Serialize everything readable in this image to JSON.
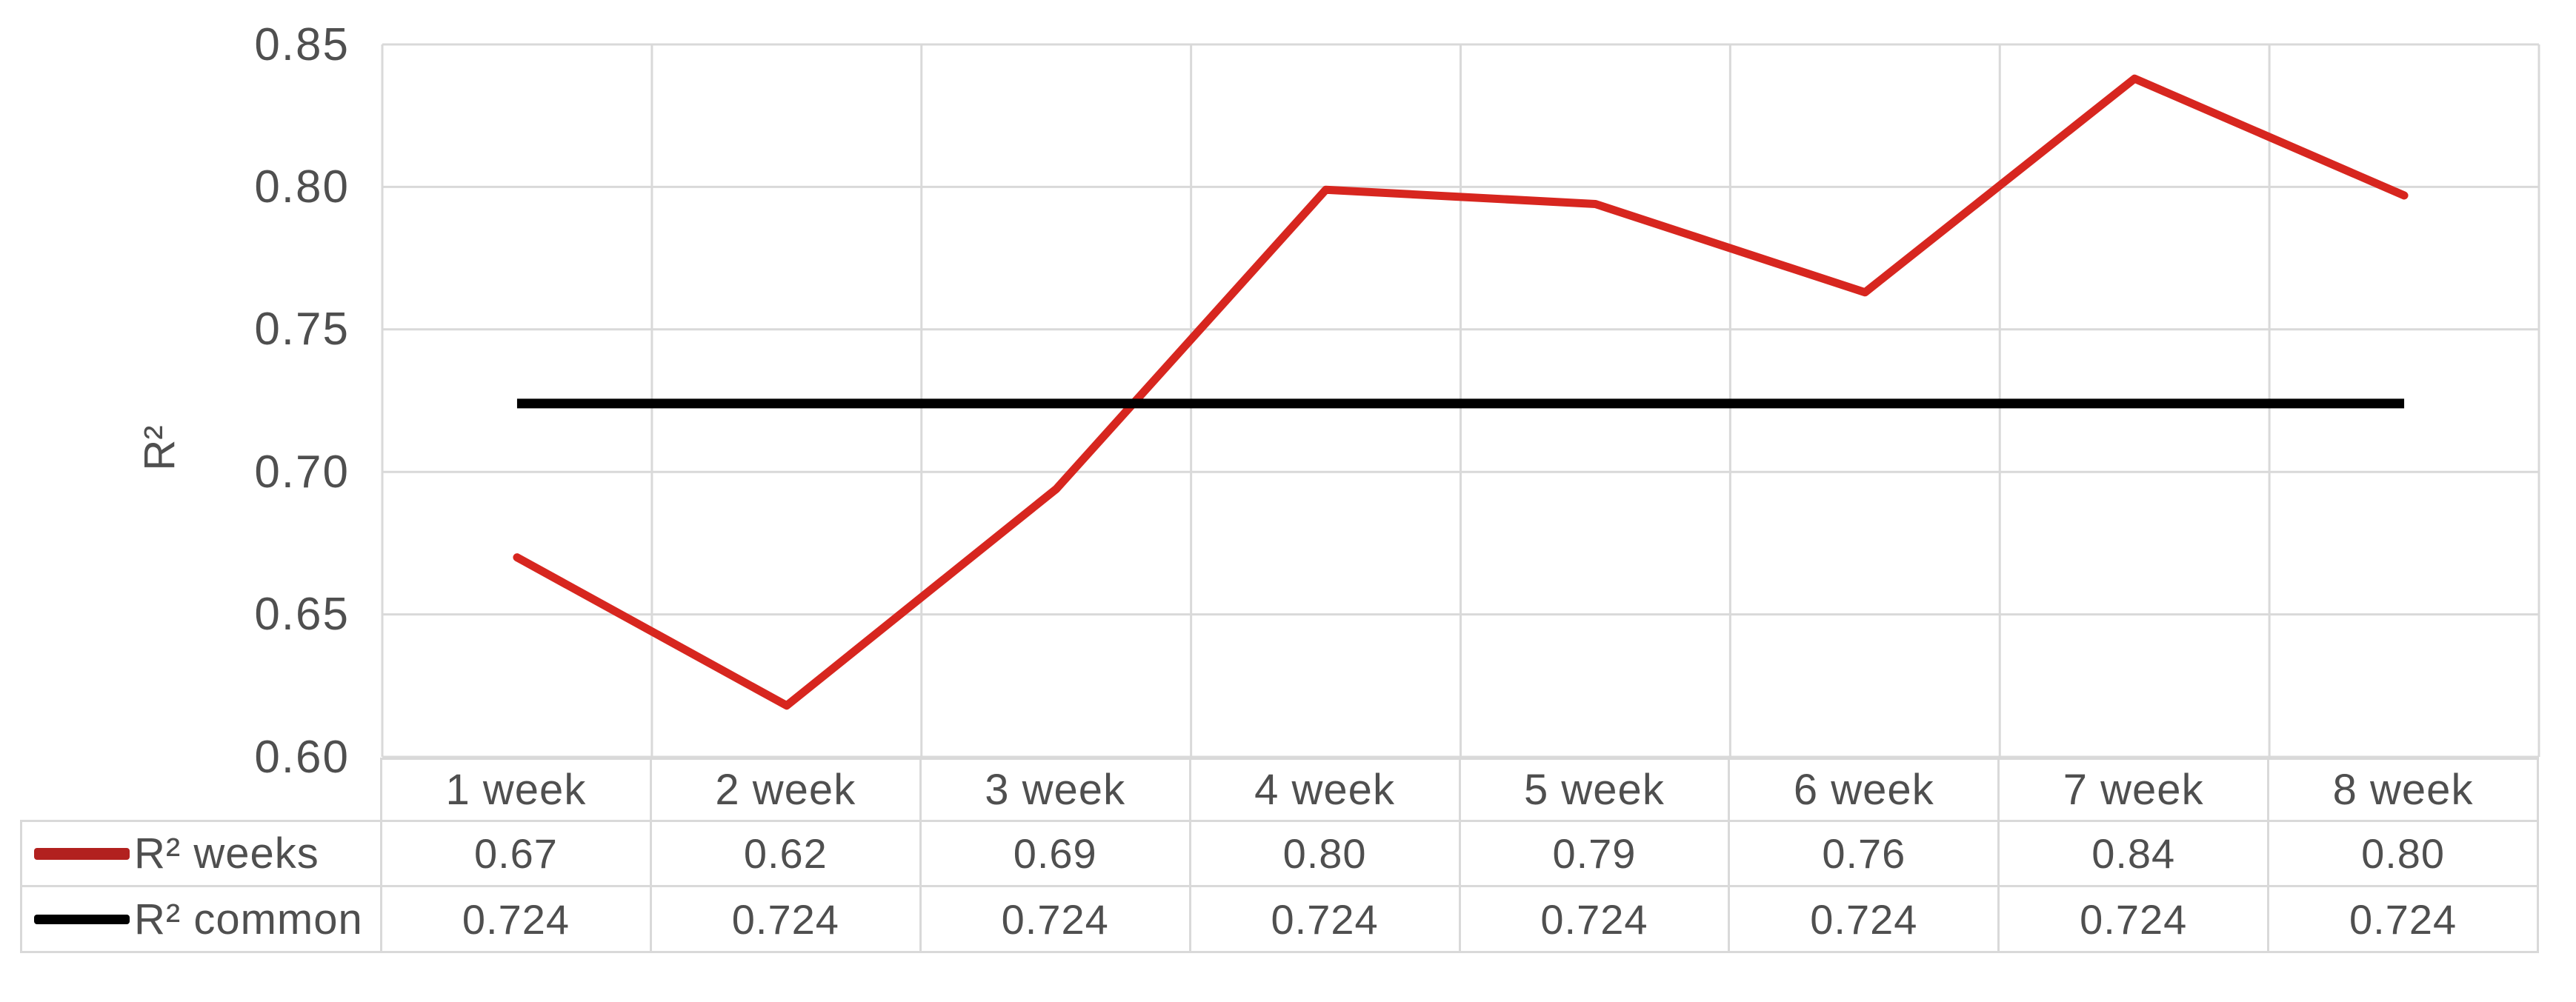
{
  "chart_data": {
    "type": "line",
    "title": "",
    "ylabel": "R²",
    "xlabel": "",
    "categories": [
      "1 week",
      "2 week",
      "3 week",
      "4 week",
      "5 week",
      "6 week",
      "7 week",
      "8 week"
    ],
    "series": [
      {
        "name": "R² weeks",
        "color": "#d7261f",
        "legend_color": "#b2211f",
        "values": [
          0.67,
          0.62,
          0.69,
          0.8,
          0.79,
          0.76,
          0.84,
          0.8
        ],
        "values_precise": [
          0.67,
          0.618,
          0.694,
          0.799,
          0.794,
          0.763,
          0.838,
          0.797
        ],
        "table_labels": [
          "0.67",
          "0.62",
          "0.69",
          "0.80",
          "0.79",
          "0.76",
          "0.84",
          "0.80"
        ]
      },
      {
        "name": "R² common",
        "color": "#000000",
        "legend_color": "#000000",
        "values": [
          0.724,
          0.724,
          0.724,
          0.724,
          0.724,
          0.724,
          0.724,
          0.724
        ],
        "values_precise": [
          0.724,
          0.724,
          0.724,
          0.724,
          0.724,
          0.724,
          0.724,
          0.724
        ],
        "table_labels": [
          "0.724",
          "0.724",
          "0.724",
          "0.724",
          "0.724",
          "0.724",
          "0.724",
          "0.724"
        ]
      }
    ],
    "ylim": [
      0.6,
      0.85
    ],
    "yticks": [
      0.6,
      0.65,
      0.7,
      0.75,
      0.8,
      0.85
    ],
    "ytick_labels": [
      "0.60",
      "0.65",
      "0.70",
      "0.75",
      "0.80",
      "0.85"
    ],
    "grid": true,
    "legend_position": "table-left",
    "colors": {
      "grid": "#d9d9d9",
      "text": "#4f4f4f",
      "background": "#ffffff"
    }
  }
}
